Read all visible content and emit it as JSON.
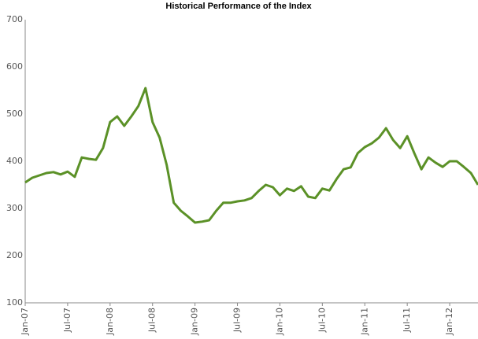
{
  "chart_data": {
    "type": "line",
    "title": "Historical Performance of the Index",
    "x": [
      "2007-01",
      "2007-02",
      "2007-03",
      "2007-04",
      "2007-05",
      "2007-06",
      "2007-07",
      "2007-08",
      "2007-09",
      "2007-10",
      "2007-11",
      "2007-12",
      "2008-01",
      "2008-02",
      "2008-03",
      "2008-04",
      "2008-05",
      "2008-06",
      "2008-07",
      "2008-08",
      "2008-09",
      "2008-10",
      "2008-11",
      "2008-12",
      "2009-01",
      "2009-02",
      "2009-03",
      "2009-04",
      "2009-05",
      "2009-06",
      "2009-07",
      "2009-08",
      "2009-09",
      "2009-10",
      "2009-11",
      "2009-12",
      "2010-01",
      "2010-02",
      "2010-03",
      "2010-04",
      "2010-05",
      "2010-06",
      "2010-07",
      "2010-08",
      "2010-09",
      "2010-10",
      "2010-11",
      "2010-12",
      "2011-01",
      "2011-02",
      "2011-03",
      "2011-04",
      "2011-05",
      "2011-06",
      "2011-07",
      "2011-08",
      "2011-09",
      "2011-10",
      "2011-11",
      "2011-12",
      "2012-01",
      "2012-02",
      "2012-03",
      "2012-04",
      "2012-05"
    ],
    "series": [
      {
        "name": "Index",
        "color": "#5b9127",
        "values": [
          355,
          365,
          370,
          375,
          377,
          372,
          378,
          367,
          408,
          405,
          403,
          428,
          483,
          495,
          475,
          495,
          517,
          555,
          483,
          450,
          392,
          312,
          295,
          283,
          270,
          272,
          275,
          295,
          312,
          312,
          315,
          317,
          322,
          337,
          350,
          345,
          328,
          342,
          337,
          347,
          325,
          322,
          342,
          338,
          362,
          383,
          387,
          417,
          430,
          438,
          450,
          470,
          445,
          428,
          453,
          417,
          383,
          408,
          397,
          388,
          400,
          400,
          388,
          375,
          350
        ]
      }
    ],
    "xticks": [
      {
        "value": "2007-01",
        "label": "Jan-07"
      },
      {
        "value": "2007-07",
        "label": "Jul-07"
      },
      {
        "value": "2008-01",
        "label": "Jan-08"
      },
      {
        "value": "2008-07",
        "label": "Jul-08"
      },
      {
        "value": "2009-01",
        "label": "Jan-09"
      },
      {
        "value": "2009-07",
        "label": "Jul-09"
      },
      {
        "value": "2010-01",
        "label": "Jan-10"
      },
      {
        "value": "2010-07",
        "label": "Jul-10"
      },
      {
        "value": "2011-01",
        "label": "Jan-11"
      },
      {
        "value": "2011-07",
        "label": "Jul-11"
      },
      {
        "value": "2012-01",
        "label": "Jan-12"
      }
    ],
    "ylim": [
      100,
      700
    ],
    "yticks": [
      100,
      200,
      300,
      400,
      500,
      600,
      700
    ],
    "grid": false
  }
}
